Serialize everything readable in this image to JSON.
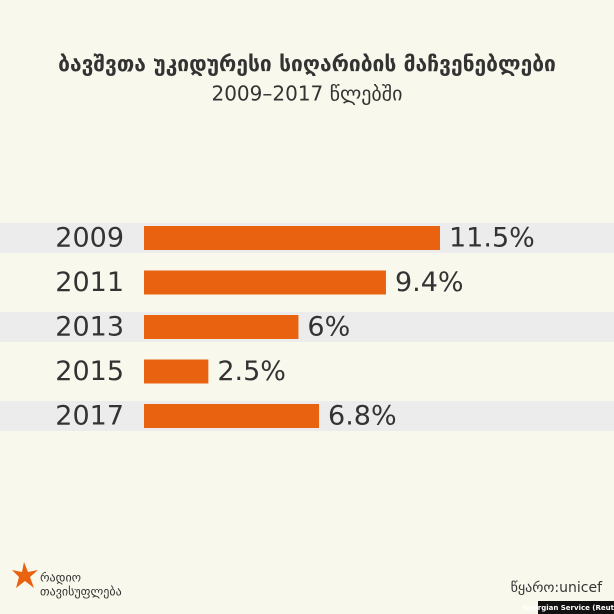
{
  "chart_data": {
    "type": "hbar",
    "title": "ბავშვთა უკიდურესი სიღარიბის მაჩვენებლები",
    "subtitle": "2009–2017 წლებში",
    "categories": [
      "2009",
      "2011",
      "2013",
      "2015",
      "2017"
    ],
    "values": [
      11.5,
      9.4,
      6,
      2.5,
      6.8
    ],
    "value_labels": [
      "11.5%",
      "9.4%",
      "6%",
      "2.5%",
      "6.8%"
    ],
    "color": "#e8620f",
    "source": "წყარო:unicef"
  },
  "branding": {
    "logo_line1": "რადიო",
    "logo_line2": "თავისუფლება",
    "credit": "Georgian Service (Reuters)"
  }
}
